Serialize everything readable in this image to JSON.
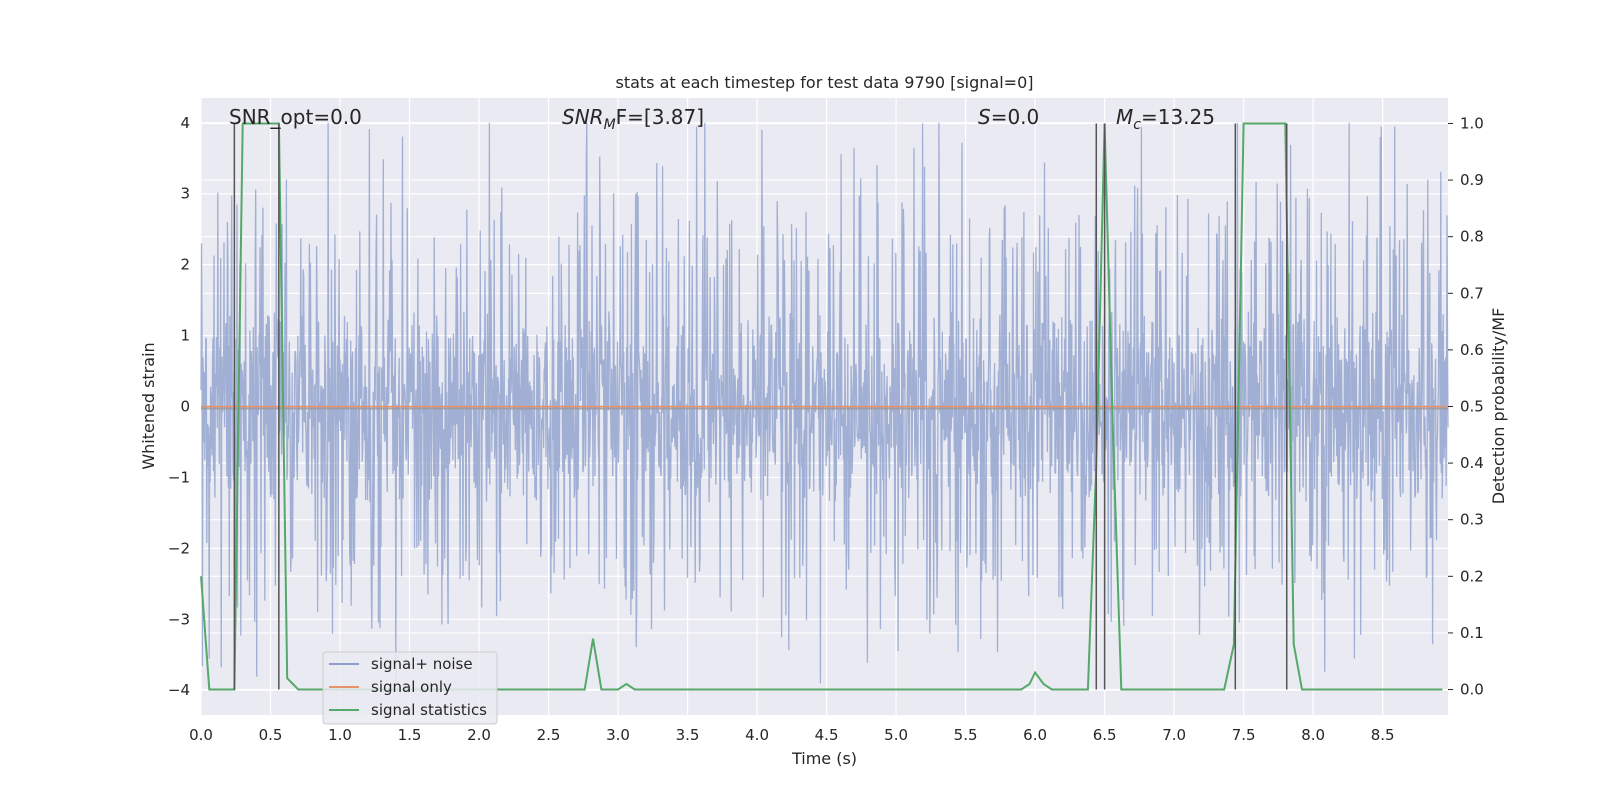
{
  "chart_data": {
    "type": "line",
    "title": "stats at each timestep for test data 9790 [signal=0]",
    "xlabel": "Time (s)",
    "ylabel_left": "Whitened strain",
    "ylabel_right": "Detection probability/MF",
    "xlim": [
      0.0,
      8.97
    ],
    "ylim_left": [
      -4.35,
      4.35
    ],
    "ylim_right": [
      -0.045,
      1.045
    ],
    "x_ticks": [
      "0.0",
      "0.5",
      "1.0",
      "1.5",
      "2.0",
      "2.5",
      "3.0",
      "3.5",
      "4.0",
      "4.5",
      "5.0",
      "5.5",
      "6.0",
      "6.5",
      "7.0",
      "7.5",
      "8.0",
      "8.5"
    ],
    "y_ticks_left": [
      "−4",
      "−3",
      "−2",
      "−1",
      "0",
      "1",
      "2",
      "3",
      "4"
    ],
    "y_ticks_right": [
      "0.0",
      "0.1",
      "0.2",
      "0.3",
      "0.4",
      "0.5",
      "0.6",
      "0.7",
      "0.8",
      "0.9",
      "1.0"
    ],
    "grid": true,
    "legend_position": "lower-left",
    "annotations": {
      "snr_opt": "SNR_opt=0.0",
      "snr_mf_main": "SNR",
      "snr_mf_sub": "M",
      "snr_mf_rest": "F=[3.87]",
      "s_main": "S",
      "s_rest": "=0.0",
      "mc_main": "M",
      "mc_sub": "c",
      "mc_rest": "=13.25"
    },
    "series": [
      {
        "name": "signal+ noise",
        "color": "#8da0cb",
        "description_values": "whitened noise time series, roughly within [-3.9, 4.0]"
      },
      {
        "name": "signal only",
        "color": "#e8916a",
        "values_constant": 0.0
      },
      {
        "name": "signal statistics",
        "color": "#55a868",
        "axis": "right",
        "x": [
          0.0,
          0.06,
          0.12,
          0.18,
          0.24,
          0.3,
          0.36,
          0.42,
          0.48,
          0.56,
          0.62,
          0.7,
          0.8,
          0.9,
          1.0,
          1.5,
          2.0,
          2.5,
          2.7,
          2.76,
          2.82,
          2.88,
          3.0,
          3.06,
          3.12,
          3.5,
          4.0,
          4.5,
          5.0,
          5.3,
          5.4,
          5.9,
          5.96,
          6.0,
          6.06,
          6.12,
          6.2,
          6.3,
          6.38,
          6.44,
          6.5,
          6.56,
          6.62,
          6.7,
          7.0,
          7.36,
          7.43,
          7.5,
          7.6,
          7.7,
          7.8,
          7.86,
          7.92,
          8.0,
          8.5,
          8.93
        ],
        "values": [
          0.2,
          0.0,
          0.0,
          0.0,
          0.0,
          1.0,
          1.0,
          1.0,
          1.0,
          1.0,
          0.02,
          0.0,
          0.0,
          0.0,
          0.0,
          0.0,
          0.0,
          0.0,
          0.0,
          0.0,
          0.09,
          0.0,
          0.0,
          0.01,
          0.0,
          0.0,
          0.0,
          0.0,
          0.0,
          0.0,
          0.0,
          0.0,
          0.01,
          0.03,
          0.01,
          0.0,
          0.0,
          0.0,
          0.0,
          0.4,
          1.0,
          0.45,
          0.0,
          0.0,
          0.0,
          0.0,
          0.08,
          1.0,
          1.0,
          1.0,
          1.0,
          0.08,
          0.0,
          0.0,
          0.0,
          0.0
        ]
      }
    ],
    "vlines": {
      "color": "#555555",
      "x": [
        0.24,
        0.56,
        6.44,
        6.5,
        7.44,
        7.81
      ]
    }
  }
}
